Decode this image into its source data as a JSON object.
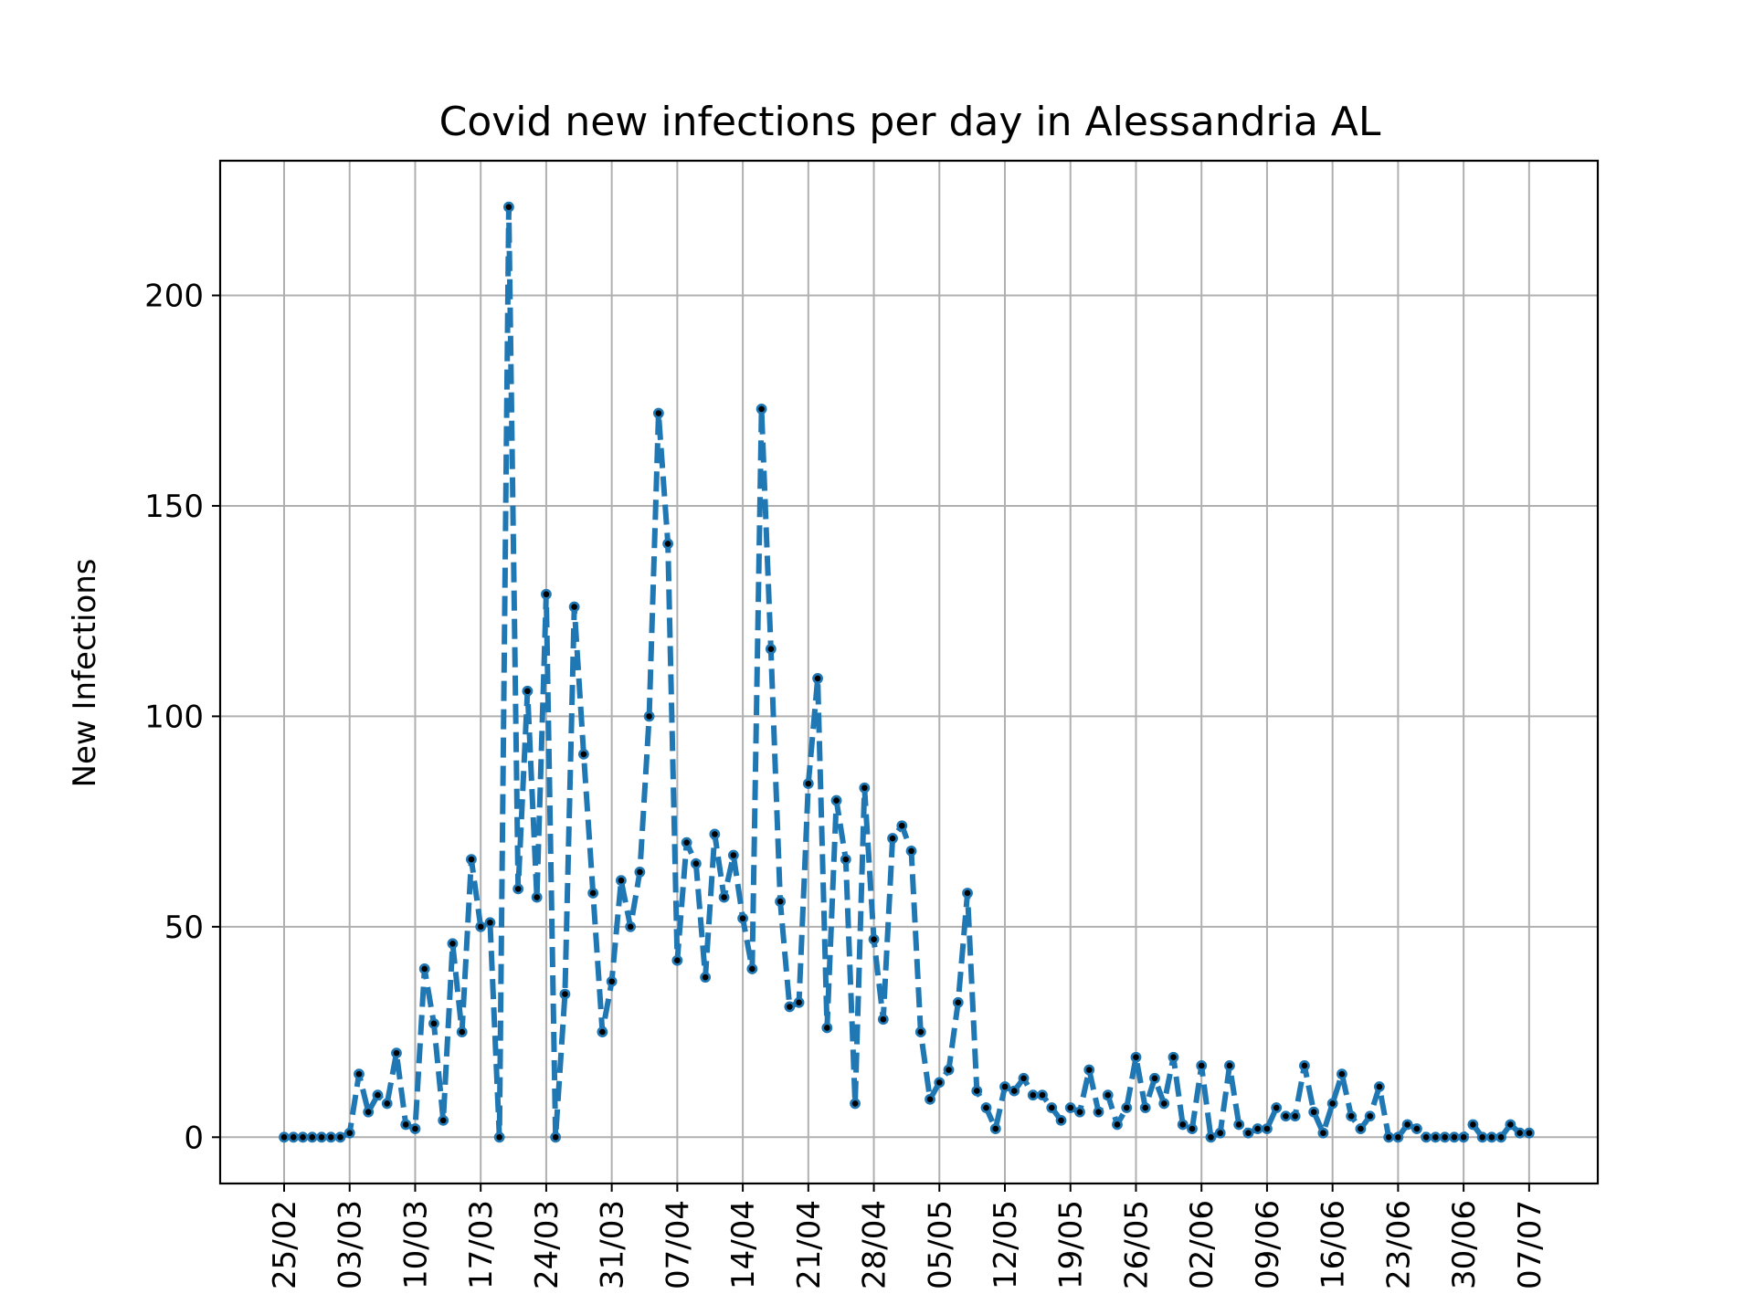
{
  "chart_data": {
    "type": "line",
    "title": "Covid new infections per day in Alessandria AL",
    "xlabel": "",
    "ylabel": "New Infections",
    "x_start": "2020-02-25",
    "x_ticks": [
      "25/02",
      "03/03",
      "10/03",
      "17/03",
      "24/03",
      "31/03",
      "07/04",
      "14/04",
      "21/04",
      "28/04",
      "05/05",
      "12/05",
      "19/05",
      "26/05",
      "02/06",
      "09/06",
      "16/06",
      "23/06",
      "30/06",
      "07/07"
    ],
    "y_ticks": [
      0,
      50,
      100,
      150,
      200
    ],
    "ylim": [
      -11,
      232
    ],
    "grid": true,
    "legend": "none",
    "series": [
      {
        "color": "#1f77b4",
        "marker_color": "#000000",
        "line_style": "dashed",
        "values": [
          0,
          0,
          0,
          0,
          0,
          0,
          0,
          1,
          15,
          6,
          10,
          8,
          20,
          3,
          2,
          40,
          27,
          4,
          46,
          25,
          66,
          50,
          51,
          0,
          221,
          59,
          106,
          57,
          129,
          0,
          34,
          126,
          91,
          58,
          25,
          37,
          61,
          50,
          63,
          100,
          172,
          141,
          42,
          70,
          65,
          38,
          72,
          57,
          67,
          52,
          40,
          173,
          116,
          56,
          31,
          32,
          84,
          109,
          26,
          80,
          66,
          8,
          83,
          47,
          28,
          71,
          74,
          68,
          25,
          9,
          13,
          16,
          32,
          58,
          11,
          7,
          2,
          12,
          11,
          14,
          10,
          10,
          7,
          4,
          7,
          6,
          16,
          6,
          10,
          3,
          7,
          19,
          7,
          14,
          8,
          19,
          3,
          2,
          17,
          0,
          1,
          17,
          3,
          1,
          2,
          2,
          7,
          5,
          5,
          17,
          6,
          1,
          8,
          15,
          5,
          2,
          5,
          12,
          0,
          0,
          3,
          2,
          0,
          0,
          0,
          0,
          0,
          3,
          0,
          0,
          0,
          3,
          1,
          1
        ]
      }
    ]
  }
}
